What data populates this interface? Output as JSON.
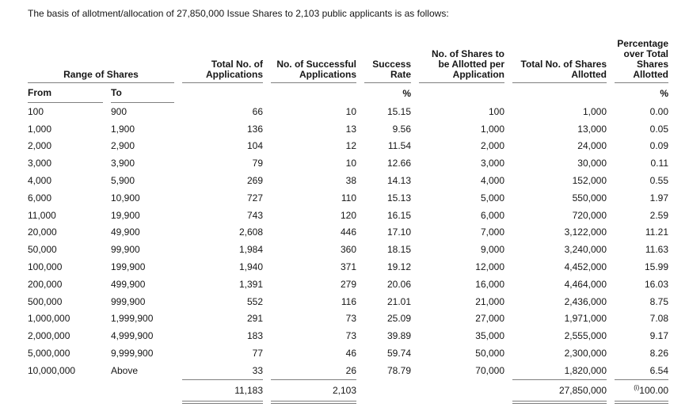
{
  "title": "The basis of allotment/allocation of 27,850,000 Issue Shares to 2,103 public applicants is as follows:",
  "table": {
    "headers": {
      "range_of_shares": "Range of Shares",
      "from": "From",
      "to": "To",
      "total_applications": "Total No. of Applications",
      "successful_applications": "No. of Successful Applications",
      "success_rate": "Success Rate",
      "shares_per_application": "No. of Shares to be Allotted per Application",
      "total_shares_allotted": "Total No. of Shares Allotted",
      "percentage_over_total": "Percentage over Total Shares Allotted",
      "percent_symbol": "%"
    },
    "rows": [
      [
        "100",
        "900",
        "66",
        "10",
        "15.15",
        "100",
        "1,000",
        "0.00"
      ],
      [
        "1,000",
        "1,900",
        "136",
        "13",
        "9.56",
        "1,000",
        "13,000",
        "0.05"
      ],
      [
        "2,000",
        "2,900",
        "104",
        "12",
        "11.54",
        "2,000",
        "24,000",
        "0.09"
      ],
      [
        "3,000",
        "3,900",
        "79",
        "10",
        "12.66",
        "3,000",
        "30,000",
        "0.11"
      ],
      [
        "4,000",
        "5,900",
        "269",
        "38",
        "14.13",
        "4,000",
        "152,000",
        "0.55"
      ],
      [
        "6,000",
        "10,900",
        "727",
        "110",
        "15.13",
        "5,000",
        "550,000",
        "1.97"
      ],
      [
        "11,000",
        "19,900",
        "743",
        "120",
        "16.15",
        "6,000",
        "720,000",
        "2.59"
      ],
      [
        "20,000",
        "49,900",
        "2,608",
        "446",
        "17.10",
        "7,000",
        "3,122,000",
        "11.21"
      ],
      [
        "50,000",
        "99,900",
        "1,984",
        "360",
        "18.15",
        "9,000",
        "3,240,000",
        "11.63"
      ],
      [
        "100,000",
        "199,900",
        "1,940",
        "371",
        "19.12",
        "12,000",
        "4,452,000",
        "15.99"
      ],
      [
        "200,000",
        "499,900",
        "1,391",
        "279",
        "20.06",
        "16,000",
        "4,464,000",
        "16.03"
      ],
      [
        "500,000",
        "999,900",
        "552",
        "116",
        "21.01",
        "21,000",
        "2,436,000",
        "8.75"
      ],
      [
        "1,000,000",
        "1,999,900",
        "291",
        "73",
        "25.09",
        "27,000",
        "1,971,000",
        "7.08"
      ],
      [
        "2,000,000",
        "4,999,900",
        "183",
        "73",
        "39.89",
        "35,000",
        "2,555,000",
        "9.17"
      ],
      [
        "5,000,000",
        "9,999,900",
        "77",
        "46",
        "59.74",
        "50,000",
        "2,300,000",
        "8.26"
      ],
      [
        "10,000,000",
        "Above",
        "33",
        "26",
        "78.79",
        "70,000",
        "1,820,000",
        "6.54"
      ]
    ],
    "totals": {
      "total_applications": "11,183",
      "successful_applications": "2,103",
      "total_shares_allotted": "27,850,000",
      "percentage_note": "(i)",
      "percentage": "100.00"
    }
  },
  "colors": {
    "rule_gray": "#7f7f7f",
    "text": "#161616",
    "background": "#ffffff"
  }
}
